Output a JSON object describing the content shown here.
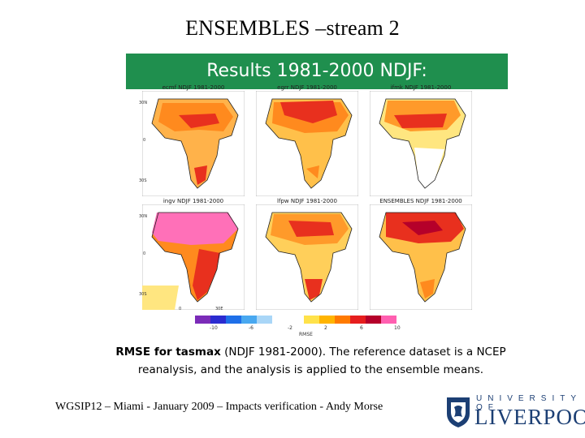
{
  "slide": {
    "title": "ENSEMBLES –stream 2",
    "banner": "Results 1981-2000 NDJF:",
    "banner_color": "#1f8f4e"
  },
  "figure": {
    "panels": [
      {
        "label": "ecmf NDJF 1981-2000"
      },
      {
        "label": "egrr NDJF 1981-2000"
      },
      {
        "label": "ifmk NDJF 1981-2000"
      },
      {
        "label": "ingv NDJF 1981-2000"
      },
      {
        "label": "lfpw NDJF 1981-2000"
      },
      {
        "label": "ENSEMBLES NDJF 1981-2000"
      }
    ],
    "lat_labels": [
      "30N",
      "0",
      "30S"
    ],
    "lon_labels": [
      "0",
      "30E"
    ],
    "colorbar": {
      "colors": [
        "#7b2bb8",
        "#2b2bd0",
        "#1e6fe8",
        "#49a8f0",
        "#a9d6f7",
        "#ffffff",
        "#ffffff",
        "#ffe24a",
        "#ffb400",
        "#ff7a00",
        "#e61e1e",
        "#b5002a",
        "#ff5fb0"
      ],
      "tick_labels": [
        "-10",
        "-6",
        "-2",
        "2",
        "6",
        "10"
      ],
      "title": "RMSE"
    }
  },
  "caption": {
    "bold": "RMSE for tasmax",
    "line1_rest": " (NDJF 1981-2000). The reference dataset is a NCEP",
    "line2": "reanalysis, and the analysis is applied to the ensemble means."
  },
  "footer": {
    "text": "WGSIP12 – Miami - January 2009 – Impacts verification - Andy Morse"
  },
  "logo": {
    "top_text": "UNIVERSITY OF",
    "main_text": "LIVERPOOL"
  }
}
